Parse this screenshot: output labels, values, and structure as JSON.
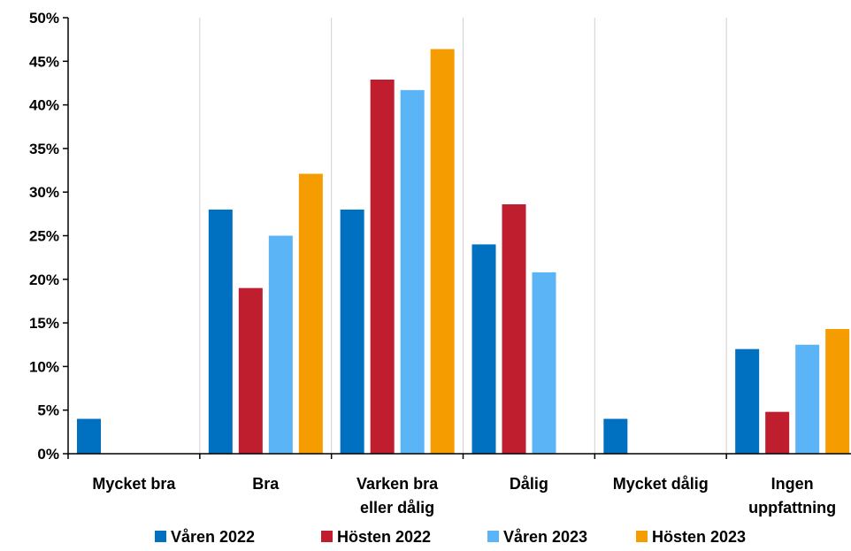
{
  "chart_data": {
    "type": "bar",
    "categories": [
      [
        "Mycket bra"
      ],
      [
        "Bra"
      ],
      [
        "Varken bra",
        "eller dålig"
      ],
      [
        "Dålig"
      ],
      [
        "Mycket dålig"
      ],
      [
        "Ingen",
        "uppfattning"
      ]
    ],
    "series": [
      {
        "name": "Våren 2022",
        "color": "#0070c0",
        "values": [
          4,
          28,
          28,
          24,
          4,
          12
        ]
      },
      {
        "name": "Hösten 2022",
        "color": "#be1e2d",
        "values": [
          0,
          19,
          42.9,
          28.6,
          0,
          4.8
        ]
      },
      {
        "name": "Våren 2023",
        "color": "#5bb4f5",
        "values": [
          0,
          25,
          41.7,
          20.8,
          0,
          12.5
        ]
      },
      {
        "name": "Hösten 2023",
        "color": "#f59c00",
        "values": [
          0,
          32.1,
          46.4,
          0,
          0,
          14.3
        ]
      }
    ],
    "yticks": [
      "0%",
      "5%",
      "10%",
      "15%",
      "20%",
      "25%",
      "30%",
      "35%",
      "40%",
      "45%",
      "50%"
    ],
    "ylim": [
      0,
      50
    ],
    "grid": "vertical separators between categories",
    "legend_position": "bottom"
  }
}
